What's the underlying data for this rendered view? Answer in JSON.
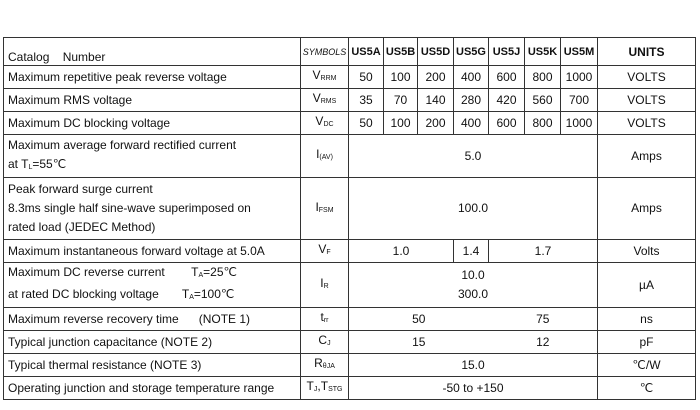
{
  "table": {
    "columns": [
      "Catalog    Number",
      "SYMBOLS",
      "US5A",
      "US5B",
      "US5D",
      "US5G",
      "US5J",
      "US5K",
      "US5M",
      "UNITS"
    ],
    "rows": [
      {
        "param": [
          "Maximum repetitive peak reverse voltage"
        ],
        "symbol": [
          "V",
          {
            "sub": "RRM"
          }
        ],
        "values": [
          "50",
          "100",
          "200",
          "400",
          "600",
          "800",
          "1000"
        ],
        "unit": "VOLTS"
      },
      {
        "param": [
          "Maximum RMS voltage"
        ],
        "symbol": [
          "V",
          {
            "sub": "RMS"
          }
        ],
        "values": [
          "35",
          "70",
          "140",
          "280",
          "420",
          "560",
          "700"
        ],
        "unit": "VOLTS"
      },
      {
        "param": [
          "Maximum DC blocking voltage"
        ],
        "symbol": [
          "V",
          {
            "sub": "DC"
          }
        ],
        "values": [
          "50",
          "100",
          "200",
          "400",
          "600",
          "800",
          "1000"
        ],
        "unit": "VOLTS"
      },
      {
        "param": [
          "Maximum average forward rectified current",
          [
            "at T",
            {
              "sub": "L"
            },
            "=55℃"
          ]
        ],
        "symbol": [
          "I",
          {
            "sub": "(AV)"
          }
        ],
        "values": [
          "5.0"
        ],
        "unit": "Amps"
      },
      {
        "param": [
          "Peak forward surge current",
          "8.3ms single half sine-wave superimposed on",
          "rated load (JEDEC Method)"
        ],
        "symbol": [
          "I",
          {
            "sub": "FSM"
          }
        ],
        "values": [
          "100.0"
        ],
        "unit": "Amps"
      },
      {
        "param": [
          "Maximum instantaneous forward voltage at 5.0A"
        ],
        "symbol": [
          "V",
          {
            "sub": "F"
          }
        ],
        "values": [
          "1.0",
          "1.4",
          "1.7"
        ],
        "unit": "Volts"
      },
      {
        "param": [
          [
            "Maximum DC reverse current        T",
            {
              "sub": "A"
            },
            "=25℃"
          ],
          [
            "at rated DC blocking voltage       T",
            {
              "sub": "A"
            },
            "=100℃"
          ]
        ],
        "symbol": [
          "I",
          {
            "sub": "R"
          }
        ],
        "values": [
          [
            "10.0",
            "300.0"
          ]
        ],
        "unit": "µA"
      },
      {
        "param": [
          "Maximum reverse recovery time      (NOTE 1)"
        ],
        "symbol": [
          "t",
          {
            "sub": "rr"
          }
        ],
        "values": [
          "50",
          "75"
        ],
        "unit": "ns"
      },
      {
        "param": [
          "Typical junction capacitance (NOTE 2)"
        ],
        "symbol": [
          "C",
          {
            "sub": "J"
          }
        ],
        "values": [
          "15",
          "12"
        ],
        "unit": "pF"
      },
      {
        "param": [
          "Typical thermal resistance (NOTE 3)"
        ],
        "symbol": [
          "R",
          {
            "sub": "θJA"
          }
        ],
        "values": [
          "15.0"
        ],
        "unit": "℃/W"
      },
      {
        "param": [
          "Operating junction and storage temperature range"
        ],
        "symbol": [
          "T",
          {
            "sub": "J"
          },
          ",T",
          {
            "sub": "STG"
          }
        ],
        "values": [
          "-50 to +150"
        ],
        "unit": "℃"
      }
    ]
  }
}
